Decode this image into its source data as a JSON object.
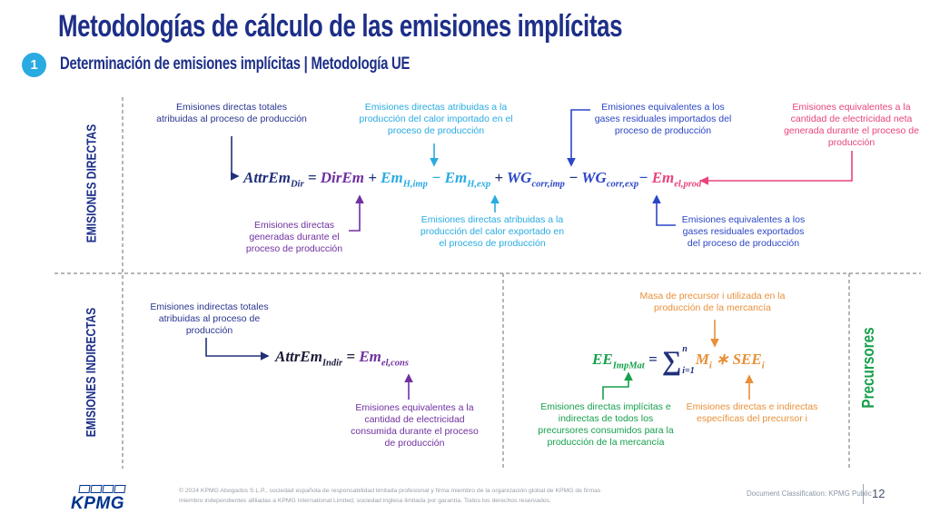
{
  "slide": {
    "title": "Metodologías de cálculo de las emisiones implícitas",
    "badge": "1",
    "subtitle": "Determinación de emisiones implícitas | Metodología UE"
  },
  "colors": {
    "titleNavy": "#1d2f88",
    "navy": "#20307a",
    "navyAnn": "#2a3590",
    "royal": "#2b46c6",
    "cyan": "#29abe2",
    "purple": "#7030a0",
    "pink": "#e8447d",
    "green": "#16a04c",
    "orange": "#e8903a",
    "dark": "#1c1c3a",
    "badgeBlue": "#29abe2",
    "kpmgBlue": "#00338d"
  },
  "sections": {
    "direct": "EMISIONES DIRECTAS",
    "indirect": "EMISIONES INDIRECTAS",
    "precursors": "Precursores"
  },
  "annotations": {
    "direct_total": "Emisiones directas totales atribuidas al proceso de producción",
    "heat_imported": "Emisiones directas atribuidas a la producción del calor importado en el proceso de producción",
    "waste_gas_imported": "Emisiones equivalentes a los gases residuales importados del proceso de producción",
    "electricity_generated": "Emisiones equivalentes a la cantidad de electricidad neta generada durante el proceso de producción",
    "direct_generated": "Emisiones directas generadas durante el proceso de producción",
    "heat_exported": "Emisiones directas atribuidas a la producción del calor exportado en el proceso de producción",
    "waste_gas_exported": "Emisiones equivalentes a los gases residuales exportados del proceso de producción",
    "indirect_total": "Emisiones indirectas totales atribuidas al proceso de producción",
    "electricity_consumed": "Emisiones equivalentes a la cantidad de electricidad consumida durante el proceso de producción",
    "precursor_mass": "Masa de precursor i utilizada en la producción de la mercancía",
    "precursor_emissions": "Emisiones directas implícitas e indirectas de todos los precursores consumidos para la producción de la mercancía",
    "precursor_specific": "Emisiones directas e indirectas específicas del precursor i"
  },
  "formulas": {
    "direct": [
      {
        "t": "AttrEm",
        "s": "Dir",
        "c": "navy"
      },
      {
        "t": " = ",
        "c": "navy"
      },
      {
        "t": "DirEm",
        "c": "purple"
      },
      {
        "t": " + ",
        "c": "navy"
      },
      {
        "t": "Em",
        "s": "H,imp",
        "c": "cyan"
      },
      {
        "t": " − ",
        "c": "cyan"
      },
      {
        "t": "Em",
        "s": "H,exp",
        "c": "cyan"
      },
      {
        "t": " + ",
        "c": "navy"
      },
      {
        "t": "WG",
        "s": "corr,imp",
        "c": "royal"
      },
      {
        "t": " − ",
        "c": "navy"
      },
      {
        "t": "WG",
        "s": "corr,exp",
        "c": "royal"
      },
      {
        "t": "− ",
        "c": "royal"
      },
      {
        "t": "Em",
        "s": "el,prod",
        "c": "pink"
      }
    ],
    "indirect": [
      {
        "t": "AttrEm",
        "s": "Indir",
        "c": "dark"
      },
      {
        "t": " = ",
        "c": "dark"
      },
      {
        "t": "Em",
        "s": "el,cons",
        "c": "purple"
      }
    ],
    "precursors": [
      {
        "t": "EE",
        "s": "ImpMat",
        "c": "green"
      },
      {
        "t": " = ",
        "c": "navy"
      },
      {
        "sum": true,
        "top": "n",
        "bottom": "i=1",
        "c": "navy"
      },
      {
        "t": "M",
        "s": "i",
        "c": "orange"
      },
      {
        "t": " ∗ ",
        "c": "orange"
      },
      {
        "t": "SEE",
        "s": "i",
        "c": "orange"
      }
    ]
  },
  "footer": {
    "logo": "KPMG",
    "copyright_line1": "© 2024 KPMG Abogados S.L.P., sociedad española de responsabilidad limitada profesional y firma miembro de la organización global de KPMG de firmas",
    "copyright_line2": "miembro independientes afiliadas a KPMG International Limited, sociedad inglesa limitada por garantía. Todos los derechos reservados.",
    "classification": "Document Classification: KPMG Public",
    "page": "12"
  }
}
